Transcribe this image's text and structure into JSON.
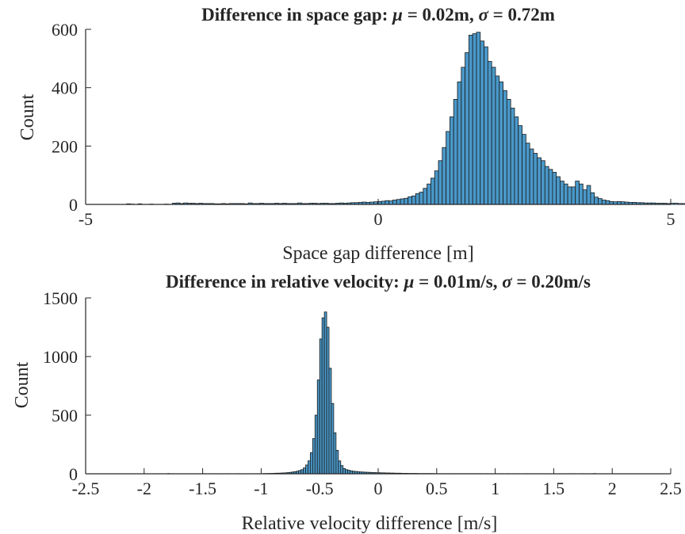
{
  "chart_data": [
    {
      "type": "bar",
      "subtype": "histogram",
      "title": "Difference in space gap: μ = 0.02m, σ = 0.72m",
      "title_parts": {
        "prefix": "Difference in space gap: ",
        "mu_symbol": "μ",
        "mu_value": " = 0.02m, ",
        "sigma_symbol": "σ",
        "sigma_value": " = 0.72m"
      },
      "xlabel": "Space gap difference [m]",
      "ylabel": "Count",
      "xlim": [
        -5,
        5
      ],
      "ylim": [
        0,
        600
      ],
      "xticks": [
        "-5",
        "0",
        "5"
      ],
      "xtick_values": [
        -5,
        0,
        5
      ],
      "yticks": [
        "0",
        "200",
        "400",
        "600"
      ],
      "ytick_values": [
        0,
        200,
        400,
        600
      ],
      "bar_color": "#4a98c9",
      "edge_color": "#1a1a1a",
      "bin_edges_start": -4.3,
      "bin_width": 0.065,
      "values": [
        2,
        1,
        0,
        2,
        0,
        0,
        1,
        0,
        0,
        0,
        1,
        0,
        4,
        5,
        3,
        5,
        4,
        4,
        3,
        4,
        3,
        3,
        3,
        2,
        2,
        3,
        2,
        3,
        3,
        3,
        3,
        2,
        5,
        3,
        3,
        4,
        3,
        3,
        3,
        4,
        3,
        4,
        3,
        3,
        3,
        5,
        3,
        3,
        4,
        4,
        3,
        4,
        4,
        3,
        3,
        4,
        5,
        4,
        5,
        6,
        6,
        7,
        8,
        7,
        8,
        9,
        10,
        11,
        13,
        12,
        15,
        17,
        19,
        21,
        26,
        29,
        37,
        42,
        55,
        70,
        90,
        115,
        150,
        195,
        250,
        300,
        360,
        420,
        470,
        520,
        580,
        585,
        590,
        560,
        540,
        490,
        470,
        440,
        420,
        390,
        360,
        330,
        300,
        270,
        240,
        210,
        190,
        175,
        160,
        150,
        130,
        120,
        110,
        95,
        80,
        70,
        60,
        60,
        80,
        70,
        50,
        65,
        40,
        25,
        20,
        15,
        13,
        10,
        9,
        10,
        9,
        8,
        7,
        7,
        6,
        6,
        5,
        5,
        5,
        4,
        4,
        4,
        3,
        4,
        4,
        3,
        3,
        3,
        2,
        2,
        3,
        2,
        3,
        2,
        2,
        2,
        2,
        2,
        1,
        1,
        1,
        1,
        1
      ]
    },
    {
      "type": "bar",
      "subtype": "histogram",
      "title": "Difference in relative velocity: μ = 0.01m/s, σ = 0.20m/s",
      "title_parts": {
        "prefix": "Difference in relative velocity: ",
        "mu_symbol": "μ",
        "mu_value": " = 0.01m/s, ",
        "sigma_symbol": "σ",
        "sigma_value": " = 0.20m/s"
      },
      "xlabel": "Relative velocity difference [m/s]",
      "ylabel": "Count",
      "xlim": [
        -2.5,
        2.5
      ],
      "ylim": [
        0,
        1500
      ],
      "xticks": [
        "-2.5",
        "-2",
        "-1.5",
        "-1",
        "-0.5",
        "0",
        "0.5",
        "1",
        "1.5",
        "2",
        "2.5"
      ],
      "xtick_values": [
        -2.5,
        -2,
        -1.5,
        -1,
        -0.5,
        0,
        0.5,
        1,
        1.5,
        2,
        2.5
      ],
      "yticks": [
        "0",
        "500",
        "1000",
        "1500"
      ],
      "ytick_values": [
        0,
        500,
        1000,
        1500
      ],
      "bar_color": "#4a98c9",
      "edge_color": "#1a1a1a",
      "bin_edges_start": -1.8,
      "bin_width": 0.02,
      "values": [
        2,
        0,
        1,
        0,
        0,
        0,
        0,
        0,
        0,
        0,
        0,
        0,
        0,
        0,
        0,
        1,
        0,
        0,
        1,
        0,
        0,
        0,
        0,
        0,
        0,
        1,
        0,
        0,
        0,
        0,
        1,
        0,
        0,
        0,
        0,
        1,
        0,
        0,
        1,
        0,
        1,
        2,
        2,
        3,
        3,
        4,
        5,
        5,
        6,
        7,
        8,
        10,
        12,
        15,
        18,
        22,
        28,
        35,
        50,
        75,
        110,
        180,
        300,
        500,
        800,
        1150,
        1330,
        1380,
        1250,
        900,
        600,
        350,
        200,
        110,
        70,
        45,
        35,
        30,
        25,
        22,
        20,
        18,
        16,
        15,
        14,
        13,
        12,
        11,
        10,
        9,
        9,
        8,
        8,
        7,
        7,
        6,
        6,
        5,
        5,
        5,
        4,
        4,
        4,
        3,
        3,
        3,
        3,
        2,
        2,
        2,
        2,
        2,
        2,
        2,
        1,
        1,
        1,
        1,
        1,
        1,
        1,
        1,
        1,
        1,
        1,
        1,
        1,
        1,
        1,
        1,
        1,
        1,
        1,
        1,
        1,
        0,
        1,
        0,
        1,
        0,
        1,
        0,
        1,
        0,
        0,
        1,
        0,
        0,
        0,
        1,
        0,
        0,
        0,
        1,
        0,
        0,
        0,
        1,
        0,
        0,
        0,
        0,
        0,
        0,
        0,
        0,
        0,
        0,
        0,
        0,
        0,
        1,
        0,
        1,
        0,
        0,
        0,
        1,
        0,
        0,
        0,
        0,
        2
      ]
    }
  ]
}
